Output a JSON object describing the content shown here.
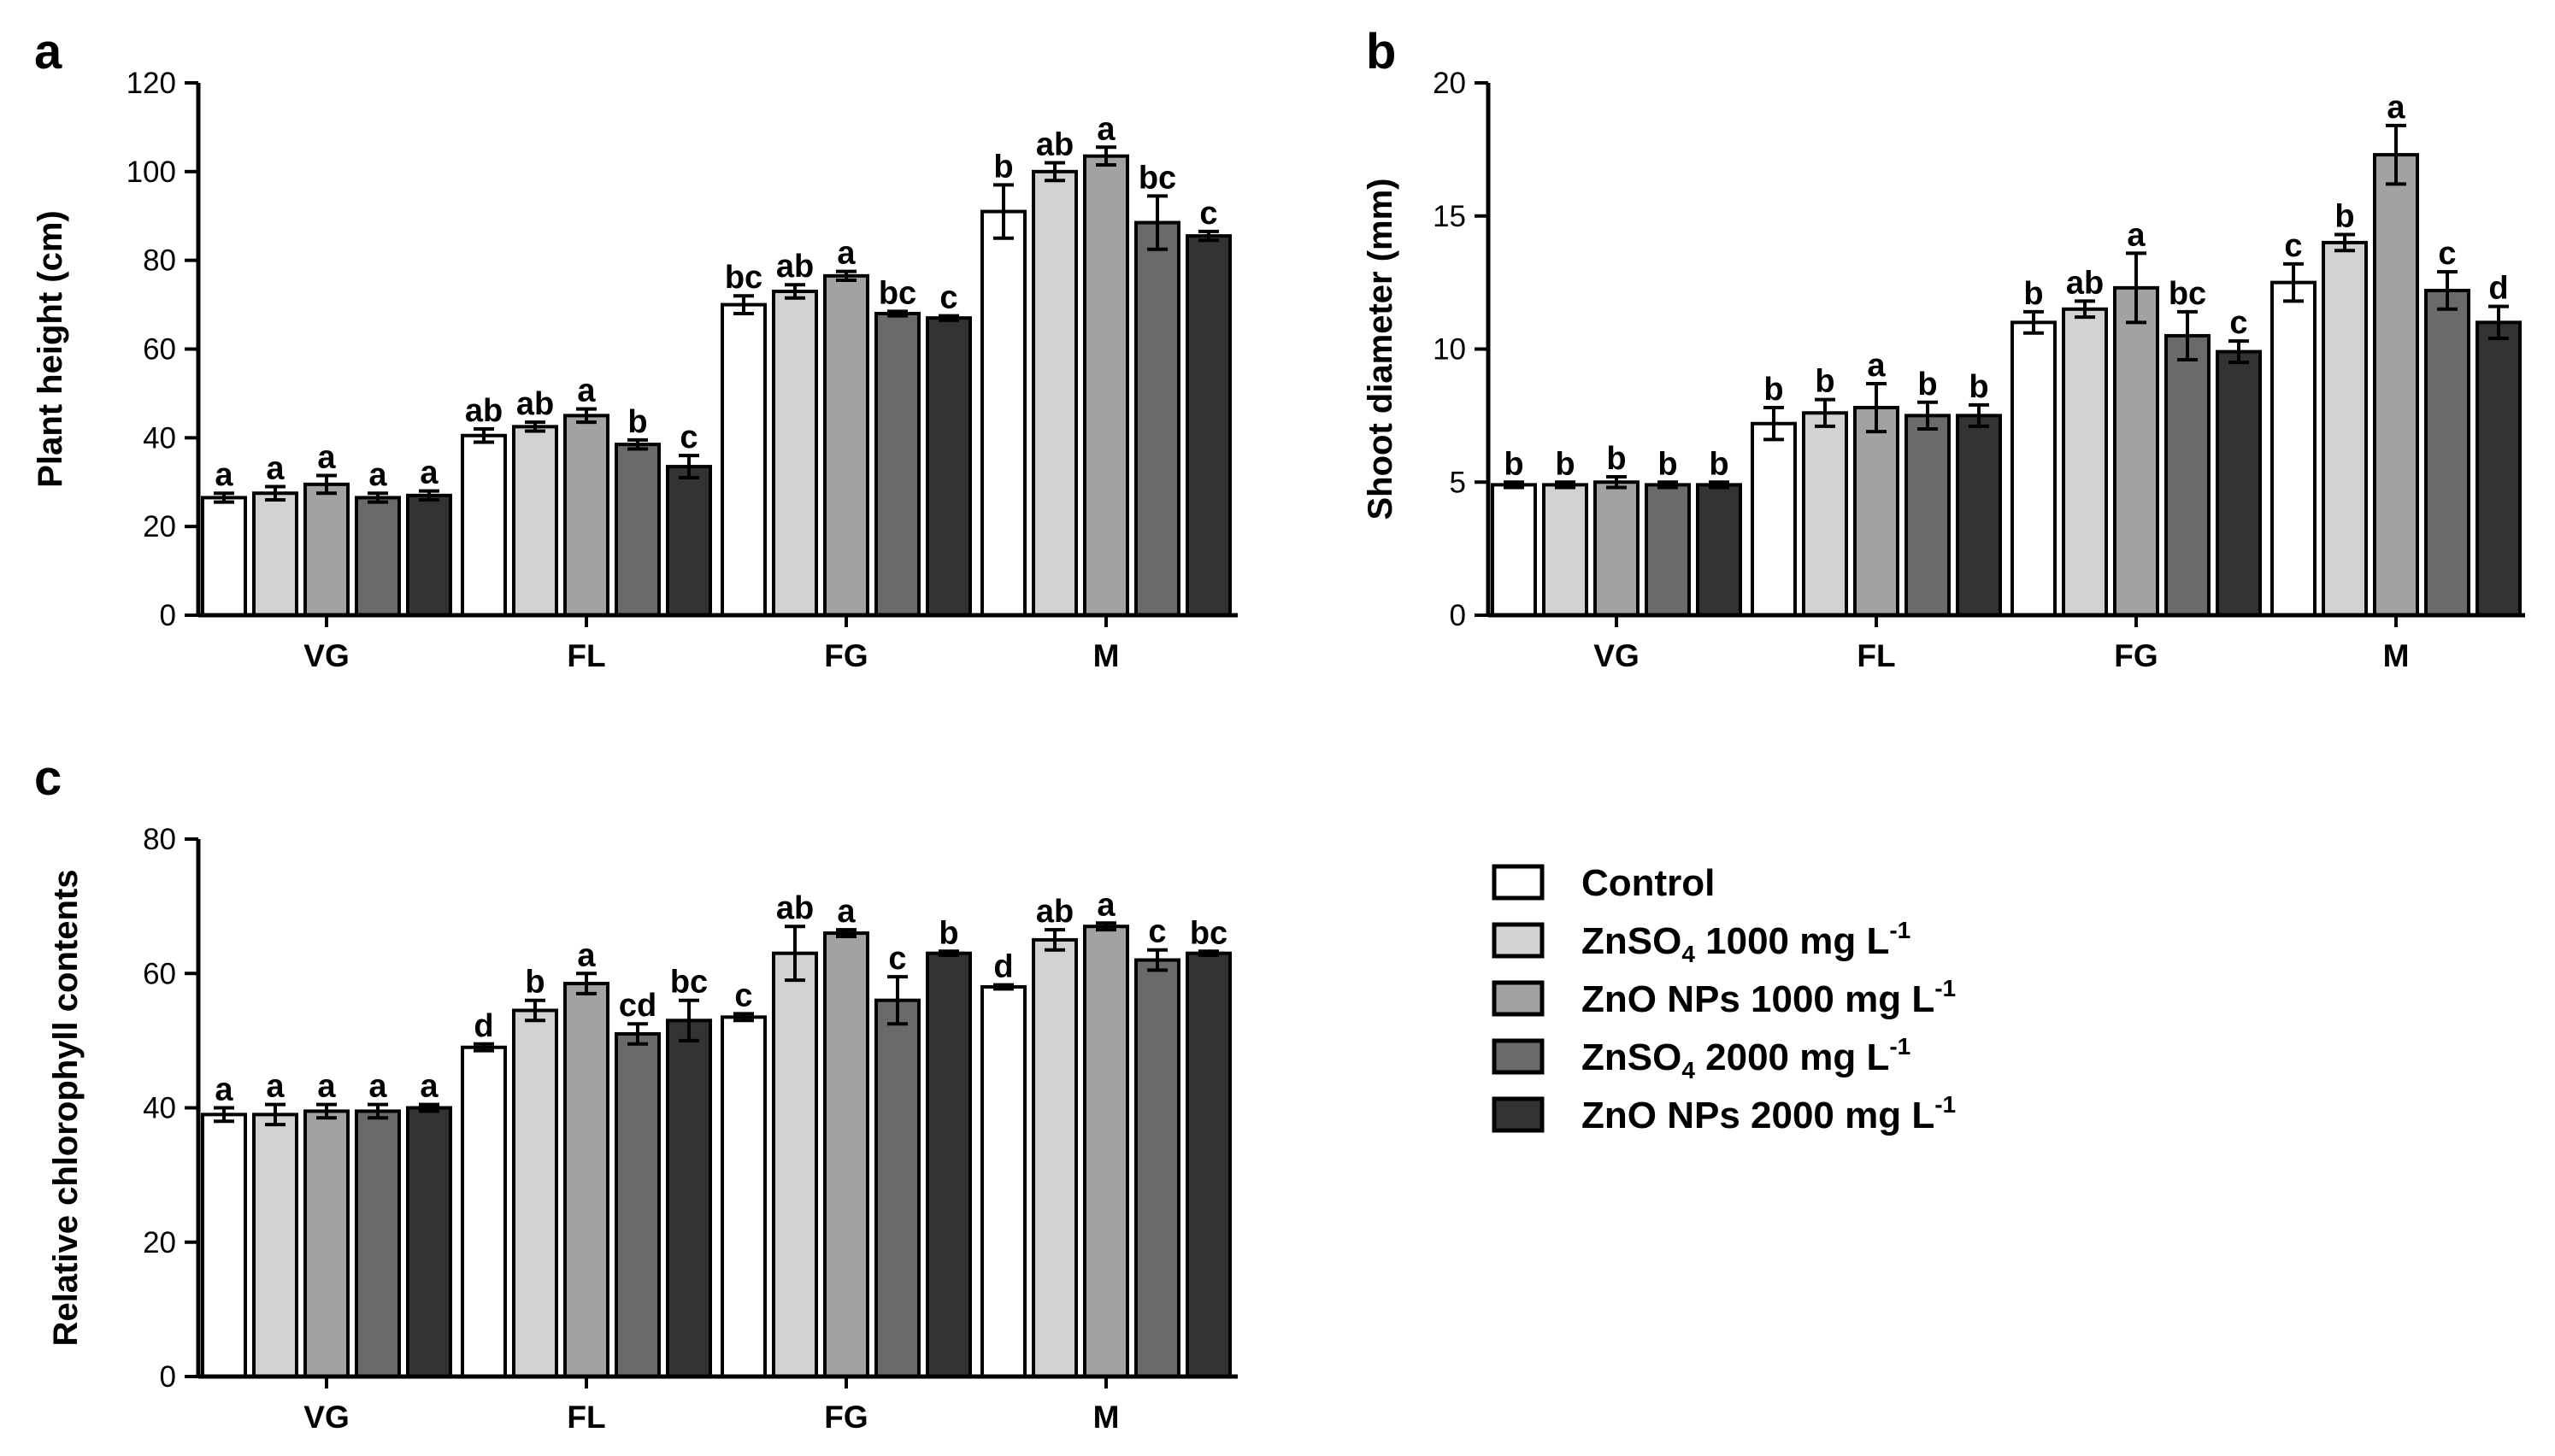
{
  "legend": {
    "items": [
      {
        "name": "Control",
        "main": "Control",
        "sub": "",
        "rest": "",
        "sup": "",
        "color": "#ffffff"
      },
      {
        "name": "ZnSO4 1000 mg L-1",
        "main": "ZnSO",
        "sub": "4",
        "rest": " 1000 mg L",
        "sup": "-1",
        "color": "#d2d2d2"
      },
      {
        "name": "ZnO NPs 1000 mg L-1",
        "main": "ZnO NPs 1000 mg L",
        "sub": "",
        "rest": "",
        "sup": "-1",
        "color": "#a2a2a2"
      },
      {
        "name": "ZnSO4 2000 mg L-1",
        "main": "ZnSO",
        "sub": "4",
        "rest": " 2000 mg L",
        "sup": "-1",
        "color": "#6a6a6a"
      },
      {
        "name": "ZnO NPs 2000 mg L-1",
        "main": "ZnO NPs 2000 mg L",
        "sub": "",
        "rest": "",
        "sup": "-1",
        "color": "#333333"
      }
    ]
  },
  "chart_data": [
    {
      "type": "bar",
      "panel": "a",
      "ylabel": "Plant height (cm)",
      "xlabel": "",
      "ylim": [
        0,
        120
      ],
      "yticks": [
        0,
        20,
        40,
        60,
        80,
        100,
        120
      ],
      "categories": [
        "VG",
        "FL",
        "FG",
        "M"
      ],
      "series": [
        {
          "name": "Control",
          "values": [
            26.5,
            40.5,
            70,
            91
          ],
          "errors": [
            1,
            1.5,
            2,
            6
          ],
          "letters": [
            "a",
            "ab",
            "bc",
            "b"
          ]
        },
        {
          "name": "ZnSO4 1000 mg L-1",
          "values": [
            27.5,
            42.5,
            73,
            100
          ],
          "errors": [
            1.5,
            1,
            1.5,
            2
          ],
          "letters": [
            "a",
            "ab",
            "ab",
            "ab"
          ]
        },
        {
          "name": "ZnO NPs 1000 mg L-1",
          "values": [
            29.5,
            45,
            76.5,
            103.5
          ],
          "errors": [
            2,
            1.5,
            1,
            2
          ],
          "letters": [
            "a",
            "a",
            "a",
            "a"
          ]
        },
        {
          "name": "ZnSO4 2000 mg L-1",
          "values": [
            26.5,
            38.5,
            68,
            88.5
          ],
          "errors": [
            1,
            1,
            0.5,
            6
          ],
          "letters": [
            "a",
            "b",
            "bc",
            "bc"
          ]
        },
        {
          "name": "ZnO NPs 2000 mg L-1",
          "values": [
            27,
            33.5,
            67,
            85.5
          ],
          "errors": [
            1,
            2.5,
            0.5,
            1
          ],
          "letters": [
            "a",
            "c",
            "c",
            "c"
          ]
        }
      ]
    },
    {
      "type": "bar",
      "panel": "b",
      "ylabel": "Shoot diameter (mm)",
      "xlabel": "",
      "ylim": [
        0,
        20
      ],
      "yticks": [
        0,
        5,
        10,
        15,
        20
      ],
      "categories": [
        "VG",
        "FL",
        "FG",
        "M"
      ],
      "series": [
        {
          "name": "Control",
          "values": [
            4.9,
            7.2,
            11,
            12.5
          ],
          "errors": [
            0.1,
            0.6,
            0.4,
            0.7
          ],
          "letters": [
            "b",
            "b",
            "b",
            "c"
          ]
        },
        {
          "name": "ZnSO4 1000 mg L-1",
          "values": [
            4.9,
            7.6,
            11.5,
            14
          ],
          "errors": [
            0.1,
            0.5,
            0.3,
            0.3
          ],
          "letters": [
            "b",
            "b",
            "ab",
            "b"
          ]
        },
        {
          "name": "ZnO NPs 1000 mg L-1",
          "values": [
            5.0,
            7.8,
            12.3,
            17.3
          ],
          "errors": [
            0.2,
            0.9,
            1.3,
            1.1
          ],
          "letters": [
            "b",
            "a",
            "a",
            "a"
          ]
        },
        {
          "name": "ZnSO4 2000 mg L-1",
          "values": [
            4.9,
            7.5,
            10.5,
            12.2
          ],
          "errors": [
            0.1,
            0.5,
            0.9,
            0.7
          ],
          "letters": [
            "b",
            "b",
            "bc",
            "c"
          ]
        },
        {
          "name": "ZnO NPs 2000 mg L-1",
          "values": [
            4.9,
            7.5,
            9.9,
            11
          ],
          "errors": [
            0.1,
            0.4,
            0.4,
            0.6
          ],
          "letters": [
            "b",
            "b",
            "c",
            "d"
          ]
        }
      ]
    },
    {
      "type": "bar",
      "panel": "c",
      "ylabel": "Relative chlorophyll contents",
      "xlabel": "",
      "ylim": [
        0,
        80
      ],
      "yticks": [
        0,
        20,
        40,
        60,
        80
      ],
      "categories": [
        "VG",
        "FL",
        "FG",
        "M"
      ],
      "series": [
        {
          "name": "Control",
          "values": [
            39,
            49,
            53.5,
            58
          ],
          "errors": [
            1,
            0.5,
            0.5,
            0.3
          ],
          "letters": [
            "a",
            "d",
            "c",
            "d"
          ]
        },
        {
          "name": "ZnSO4 1000 mg L-1",
          "values": [
            39,
            54.5,
            63,
            65
          ],
          "errors": [
            1.5,
            1.5,
            4,
            1.5
          ],
          "letters": [
            "a",
            "b",
            "ab",
            "ab"
          ]
        },
        {
          "name": "ZnO NPs 1000 mg L-1",
          "values": [
            39.5,
            58.5,
            66,
            67
          ],
          "errors": [
            1,
            1.5,
            0.5,
            0.5
          ],
          "letters": [
            "a",
            "a",
            "a",
            "a"
          ]
        },
        {
          "name": "ZnSO4 2000 mg L-1",
          "values": [
            39.5,
            51,
            56,
            62
          ],
          "errors": [
            1,
            1.5,
            3.5,
            1.5
          ],
          "letters": [
            "a",
            "cd",
            "c",
            "c"
          ]
        },
        {
          "name": "ZnO NPs 2000 mg L-1",
          "values": [
            40,
            53,
            63,
            63
          ],
          "errors": [
            0.5,
            3,
            0.3,
            0.3
          ],
          "letters": [
            "a",
            "bc",
            "b",
            "bc"
          ]
        }
      ]
    }
  ]
}
